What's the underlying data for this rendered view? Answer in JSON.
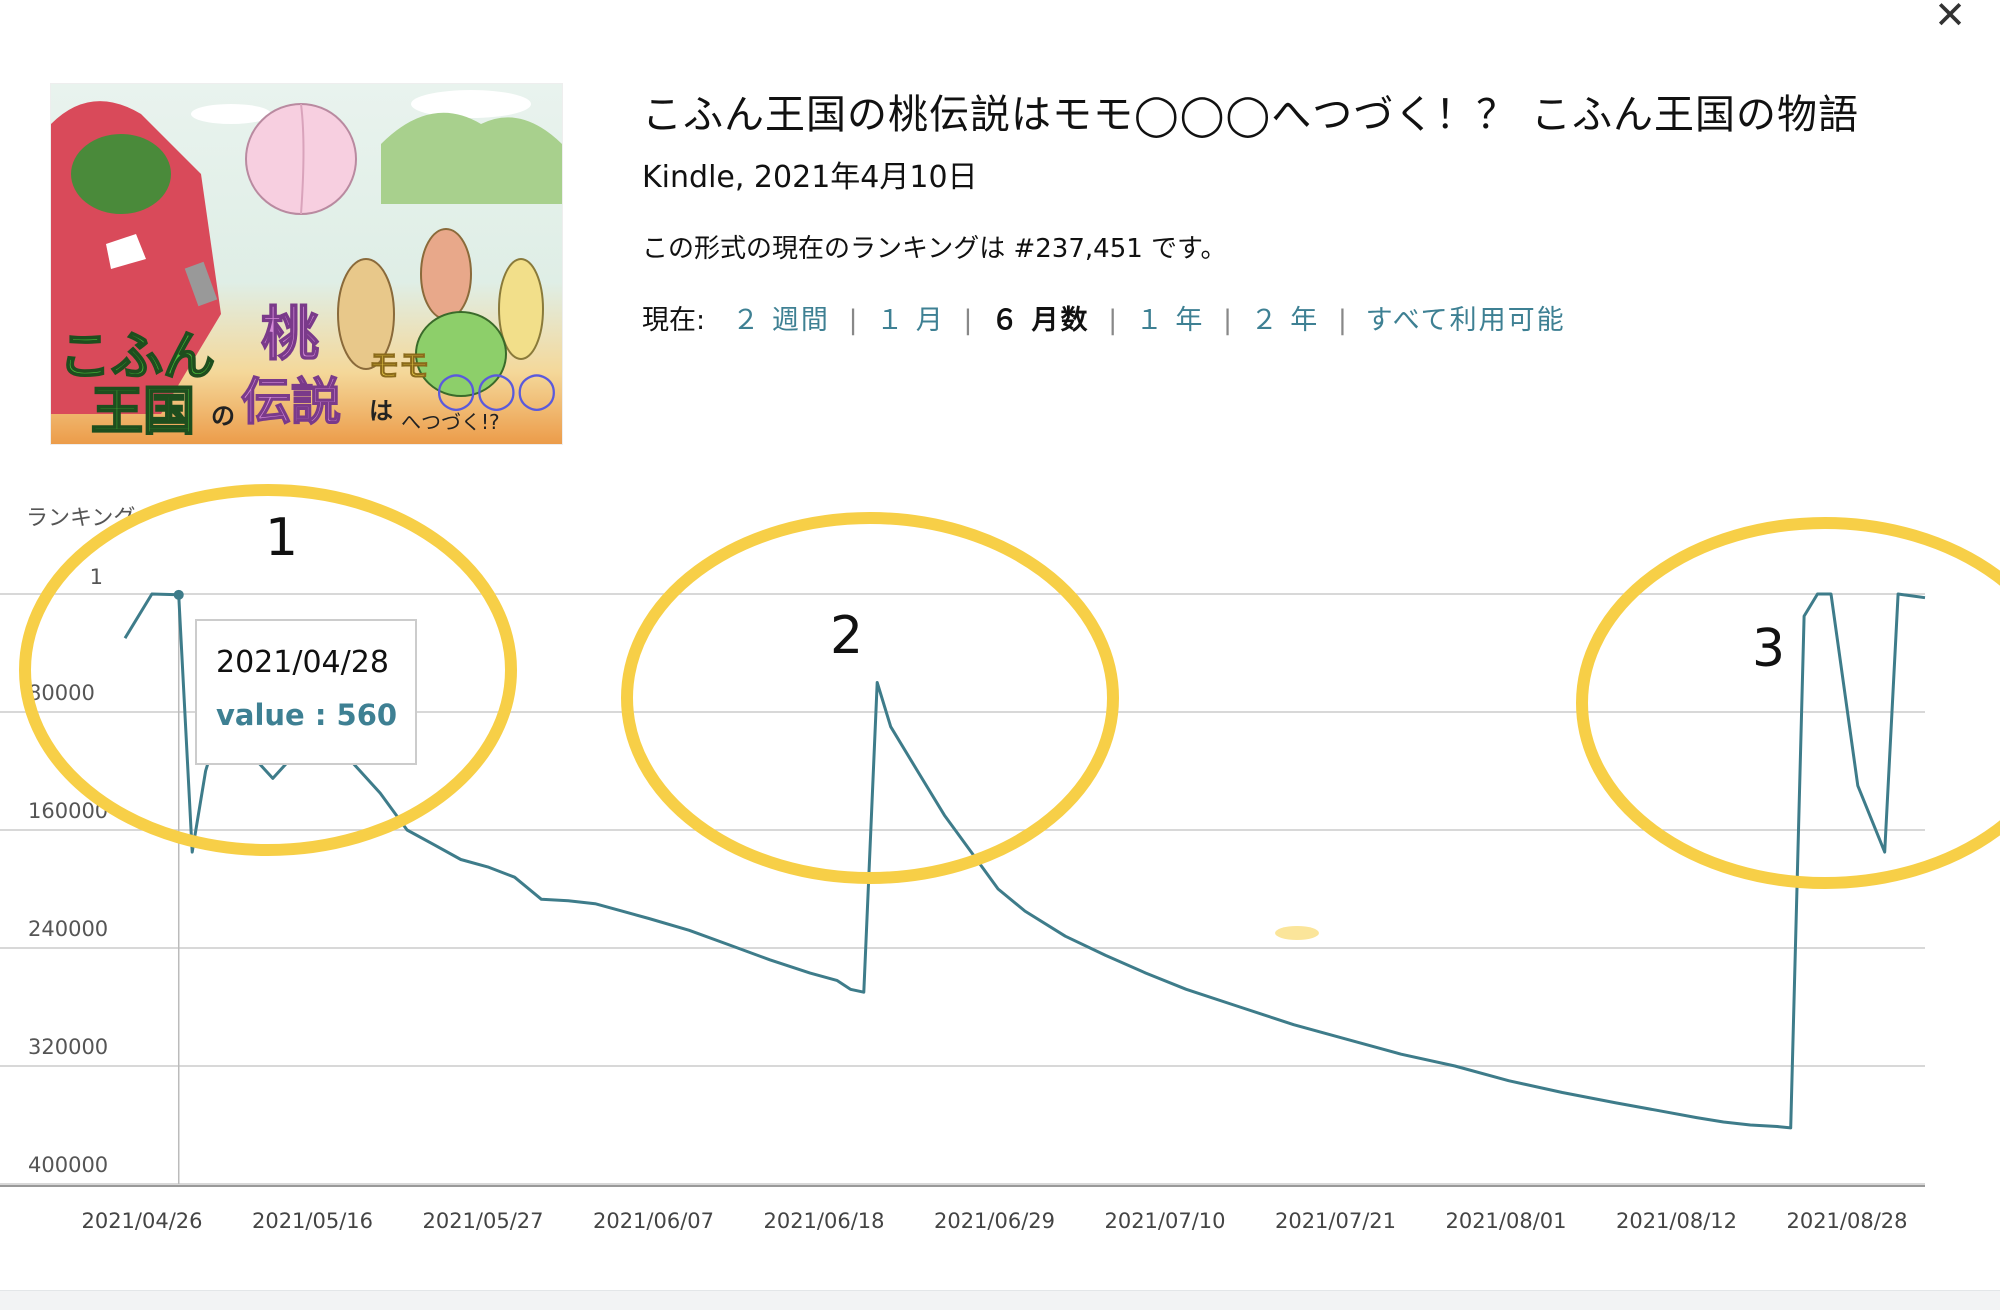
{
  "dialog": {
    "close_label": "✕"
  },
  "book": {
    "title": "こふん王国の桃伝説はモモ◯◯◯へつづく！？ こふん王国の物語",
    "format_date": "Kindle, 2021年4月10日",
    "ranking_text": "この形式の現在のランキングは #237,451 です。",
    "cover": {
      "line1": "こふん",
      "line2": "王国",
      "no": "の",
      "momo": "桃",
      "densetsu": "伝説",
      "ha": "は",
      "momo_kana": "モモ",
      "circles": "◯◯◯",
      "tsuzuku": "へつづく!?"
    }
  },
  "range_selector": {
    "label": "現在:",
    "options": [
      {
        "label": "２ 週間",
        "active": false
      },
      {
        "label": "１ 月",
        "active": false
      },
      {
        "label": "６ 月数",
        "active": true
      },
      {
        "label": "１ 年",
        "active": false
      },
      {
        "label": "２ 年",
        "active": false
      },
      {
        "label": "すべて利用可能",
        "active": false
      }
    ]
  },
  "annotations": [
    {
      "label": "1"
    },
    {
      "label": "2"
    },
    {
      "label": "3"
    }
  ],
  "tooltip": {
    "date": "2021/04/28",
    "value_text": "value : 560"
  },
  "colors": {
    "line": "#3e7c8a",
    "link": "#3e8093",
    "highlight": "#f7cf47",
    "grid": "#cccccc"
  },
  "chart_data": {
    "type": "line",
    "ylabel": "ランキング",
    "y_axis_inverted": true,
    "ylim": [
      1,
      400000
    ],
    "y_ticks": [
      "1",
      "80000",
      "160000",
      "240000",
      "320000",
      "400000"
    ],
    "y_tick_values": [
      1,
      80000,
      160000,
      240000,
      320000,
      400000
    ],
    "xlim": [
      "2021-04-24",
      "2021-09-05"
    ],
    "x_tick_labels": [
      "2021/04/26",
      "2021/05/16",
      "2021/05/27",
      "2021/06/07",
      "2021/06/18",
      "2021/06/29",
      "2021/07/10",
      "2021/07/21",
      "2021/08/01",
      "2021/08/12",
      "2021/08/28"
    ],
    "series": [
      {
        "points": [
          [
            "2021-04-24",
            30000
          ],
          [
            "2021-04-26",
            1
          ],
          [
            "2021-04-28",
            560
          ],
          [
            "2021-04-29",
            175000
          ],
          [
            "2021-04-30",
            120000
          ],
          [
            "2021-05-01",
            90000
          ],
          [
            "2021-05-03",
            105000
          ],
          [
            "2021-05-05",
            125000
          ],
          [
            "2021-05-07",
            105000
          ],
          [
            "2021-05-09",
            100000
          ],
          [
            "2021-05-11",
            115000
          ],
          [
            "2021-05-13",
            135000
          ],
          [
            "2021-05-15",
            160000
          ],
          [
            "2021-05-17",
            170000
          ],
          [
            "2021-05-19",
            180000
          ],
          [
            "2021-05-21",
            185000
          ],
          [
            "2021-05-23",
            192000
          ],
          [
            "2021-05-25",
            207000
          ],
          [
            "2021-05-27",
            208000
          ],
          [
            "2021-05-29",
            210000
          ],
          [
            "2021-05-31",
            215000
          ],
          [
            "2021-06-02",
            220000
          ],
          [
            "2021-06-05",
            228000
          ],
          [
            "2021-06-08",
            238000
          ],
          [
            "2021-06-11",
            248000
          ],
          [
            "2021-06-14",
            257000
          ],
          [
            "2021-06-16",
            262000
          ],
          [
            "2021-06-17",
            268000
          ],
          [
            "2021-06-18",
            270000
          ],
          [
            "2021-06-19",
            60000
          ],
          [
            "2021-06-20",
            90000
          ],
          [
            "2021-06-22",
            120000
          ],
          [
            "2021-06-24",
            150000
          ],
          [
            "2021-06-26",
            175000
          ],
          [
            "2021-06-28",
            200000
          ],
          [
            "2021-06-30",
            215000
          ],
          [
            "2021-07-03",
            232000
          ],
          [
            "2021-07-06",
            245000
          ],
          [
            "2021-07-09",
            257000
          ],
          [
            "2021-07-12",
            268000
          ],
          [
            "2021-07-16",
            280000
          ],
          [
            "2021-07-20",
            292000
          ],
          [
            "2021-07-24",
            302000
          ],
          [
            "2021-07-28",
            312000
          ],
          [
            "2021-08-01",
            320000
          ],
          [
            "2021-08-05",
            330000
          ],
          [
            "2021-08-09",
            338000
          ],
          [
            "2021-08-13",
            345000
          ],
          [
            "2021-08-16",
            350000
          ],
          [
            "2021-08-19",
            355000
          ],
          [
            "2021-08-21",
            358000
          ],
          [
            "2021-08-23",
            360000
          ],
          [
            "2021-08-25",
            361000
          ],
          [
            "2021-08-26",
            362000
          ],
          [
            "2021-08-27",
            15000
          ],
          [
            "2021-08-28",
            1
          ],
          [
            "2021-08-29",
            1
          ],
          [
            "2021-08-31",
            130000
          ],
          [
            "2021-09-02",
            175000
          ],
          [
            "2021-09-03",
            1
          ],
          [
            "2021-09-05",
            2500
          ]
        ]
      }
    ],
    "grid": true,
    "legend": "none"
  }
}
